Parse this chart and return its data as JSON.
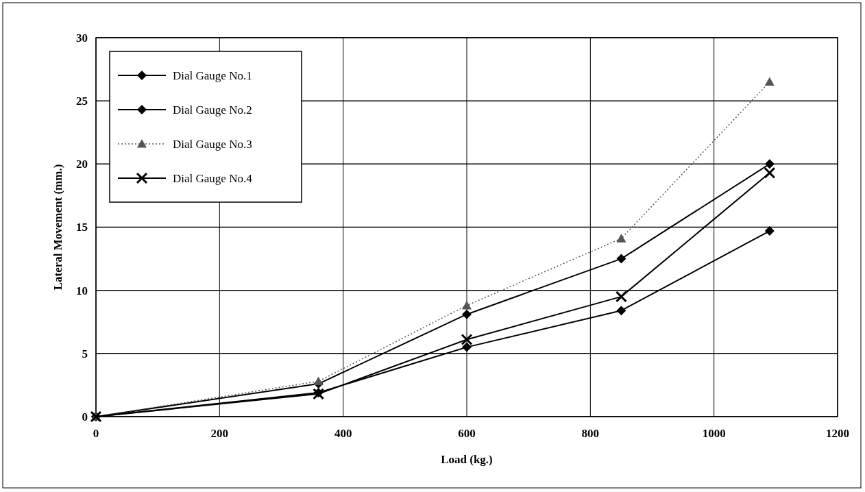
{
  "chart_data": {
    "type": "line",
    "xlabel": "Load (kg.)",
    "ylabel": "Lateral Movement (mm.)",
    "x": [
      0,
      360,
      600,
      850,
      1090
    ],
    "series": [
      {
        "name": "Dial Gauge No.1",
        "color": "#000000",
        "marker": "diamond",
        "values": [
          0,
          1.9,
          5.5,
          8.4,
          14.7
        ]
      },
      {
        "name": "Dial Gauge No.2",
        "color": "#000000",
        "marker": "diamond",
        "values": [
          0,
          2.6,
          8.1,
          12.5,
          20.0
        ]
      },
      {
        "name": "Dial Gauge No.3",
        "color": "#555555",
        "marker": "triangle",
        "line_style": "dotted",
        "values": [
          0,
          2.8,
          8.8,
          14.1,
          26.5
        ]
      },
      {
        "name": "Dial Gauge No.4",
        "color": "#000000",
        "marker": "cross",
        "values": [
          0,
          1.8,
          6.1,
          9.5,
          19.3
        ]
      }
    ],
    "xlim": [
      0,
      1200
    ],
    "xticks": [
      0,
      200,
      400,
      600,
      800,
      1000,
      1200
    ],
    "ylim": [
      0,
      30
    ],
    "yticks": [
      0,
      5,
      10,
      15,
      20,
      25,
      30
    ],
    "grid": true,
    "legend": "top left"
  }
}
